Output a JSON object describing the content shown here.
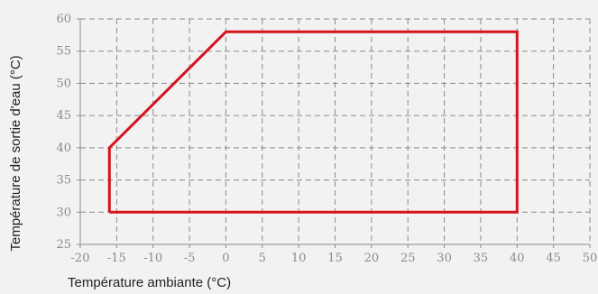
{
  "chart_data": {
    "type": "line",
    "title": "",
    "xlabel": "Température ambiante (°C)",
    "ylabel": "Température de sortie d'eau (°C)",
    "xlim": [
      -20,
      50
    ],
    "ylim": [
      25,
      60
    ],
    "xticks": [
      -20,
      -15,
      -10,
      -5,
      0,
      5,
      10,
      15,
      20,
      25,
      30,
      35,
      40,
      45,
      50
    ],
    "yticks": [
      25,
      30,
      35,
      40,
      45,
      50,
      55,
      60
    ],
    "grid": true,
    "series": [
      {
        "color": "#d7141d",
        "closed": true,
        "points": [
          [
            -16,
            30
          ],
          [
            -16,
            40
          ],
          [
            0,
            58
          ],
          [
            40,
            58
          ],
          [
            40,
            30
          ],
          [
            -16,
            30
          ]
        ]
      }
    ]
  }
}
